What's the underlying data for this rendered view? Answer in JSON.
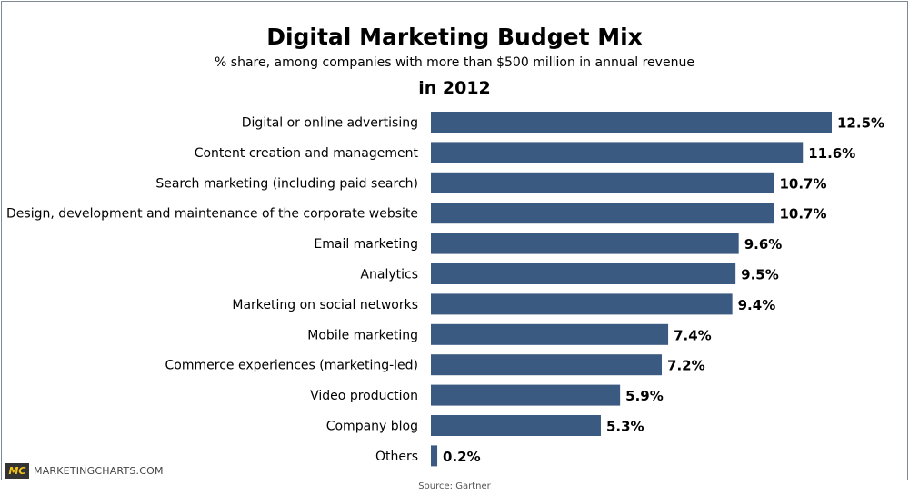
{
  "chart_data": {
    "type": "bar",
    "orientation": "horizontal",
    "title": "Digital Marketing Budget Mix",
    "subtitle": "% share, among companies with more than $500 million in annual revenue",
    "year_label": "in 2012",
    "categories": [
      "Digital or online advertising",
      "Content creation and management",
      "Search marketing (including paid search)",
      "Design, development and maintenance of the corporate website",
      "Email marketing",
      "Analytics",
      "Marketing on social networks",
      "Mobile marketing",
      "Commerce experiences (marketing-led)",
      "Video production",
      "Company blog",
      "Others"
    ],
    "values": [
      12.5,
      11.6,
      10.7,
      10.7,
      9.6,
      9.5,
      9.4,
      7.4,
      7.2,
      5.9,
      5.3,
      0.2
    ],
    "value_labels": [
      "12.5%",
      "11.6%",
      "10.7%",
      "10.7%",
      "9.6%",
      "9.5%",
      "9.4%",
      "7.4%",
      "7.2%",
      "5.9%",
      "5.3%",
      "0.2%"
    ],
    "xlim": [
      0,
      12.5
    ],
    "bar_color": "#3b5a82",
    "grid": false,
    "source": "Source: Gartner"
  },
  "branding": {
    "logo_mark": "MC",
    "logo_text": "MARKETINGCHARTS.COM"
  }
}
